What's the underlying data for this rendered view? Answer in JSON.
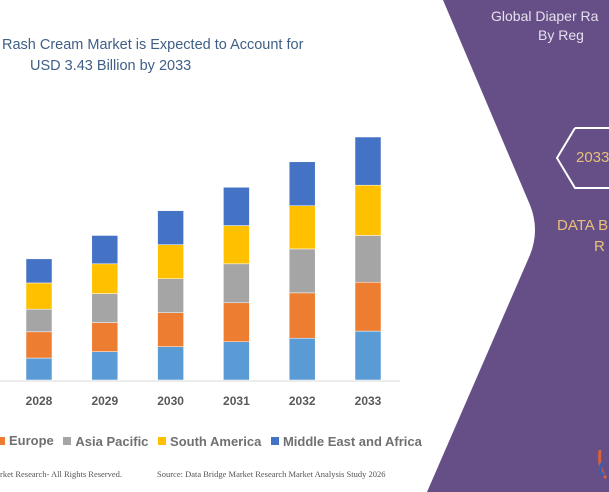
{
  "title": {
    "line1": "Rash Cream Market is Expected to Account for",
    "line2": "USD 3.43  Billion by 2033"
  },
  "chart_data": {
    "type": "bar",
    "stacked": true,
    "categories": [
      "2028",
      "2029",
      "2030",
      "2031",
      "2032",
      "2033"
    ],
    "series": [
      {
        "name": "",
        "color": "#5b9bd5",
        "values": [
          0.31,
          0.4,
          0.47,
          0.54,
          0.59,
          0.69
        ]
      },
      {
        "name": "Europe",
        "color": "#ed7d31",
        "values": [
          0.37,
          0.41,
          0.48,
          0.55,
          0.64,
          0.69
        ]
      },
      {
        "name": "Asia Pacific",
        "color": "#a5a5a5",
        "values": [
          0.32,
          0.41,
          0.48,
          0.55,
          0.62,
          0.66
        ]
      },
      {
        "name": "South America",
        "color": "#ffc000",
        "values": [
          0.37,
          0.42,
          0.48,
          0.54,
          0.61,
          0.71
        ]
      },
      {
        "name": "Middle East and Africa",
        "color": "#4472c4",
        "values": [
          0.34,
          0.4,
          0.48,
          0.54,
          0.62,
          0.68
        ]
      }
    ],
    "ylim": [
      0,
      3.43
    ],
    "grid": false,
    "legend": "bottom"
  },
  "footer": {
    "copyright": "rket Research- All Rights Reserved.",
    "source": "Source: Data Bridge Market Research Market Analysis Study 2026"
  },
  "panel": {
    "color": "#654f86",
    "heading1": "Global Diaper Ra",
    "heading2": "By Reg",
    "year_badge": "2033",
    "brand1": "DATA B",
    "brand2": "R"
  }
}
